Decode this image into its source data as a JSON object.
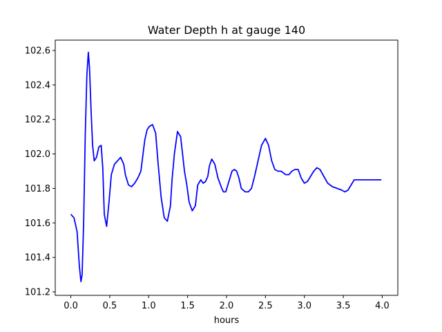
{
  "chart_data": {
    "type": "line",
    "title": "Water Depth h at gauge 140",
    "xlabel": "hours",
    "ylabel": "",
    "xlim": [
      -0.2,
      4.2
    ],
    "ylim": [
      101.18,
      102.66
    ],
    "x_ticks": [
      0.0,
      0.5,
      1.0,
      1.5,
      2.0,
      2.5,
      3.0,
      3.5,
      4.0
    ],
    "x_tick_labels": [
      "0.0",
      "0.5",
      "1.0",
      "1.5",
      "2.0",
      "2.5",
      "3.0",
      "3.5",
      "4.0"
    ],
    "y_ticks": [
      101.2,
      101.4,
      101.6,
      101.8,
      102.0,
      102.2,
      102.4,
      102.6
    ],
    "y_tick_labels": [
      "101.2",
      "101.4",
      "101.6",
      "101.8",
      "102.0",
      "102.2",
      "102.4",
      "102.6"
    ],
    "grid": false,
    "series": [
      {
        "color": "#0000ff",
        "x": [
          0.0,
          0.04,
          0.08,
          0.11,
          0.13,
          0.145,
          0.165,
          0.185,
          0.205,
          0.225,
          0.24,
          0.26,
          0.28,
          0.3,
          0.33,
          0.36,
          0.39,
          0.41,
          0.43,
          0.46,
          0.49,
          0.52,
          0.56,
          0.6,
          0.64,
          0.68,
          0.7,
          0.74,
          0.78,
          0.82,
          0.86,
          0.9,
          0.95,
          0.98,
          1.01,
          1.05,
          1.09,
          1.12,
          1.16,
          1.2,
          1.24,
          1.28,
          1.3,
          1.33,
          1.37,
          1.41,
          1.44,
          1.46,
          1.49,
          1.52,
          1.56,
          1.6,
          1.63,
          1.67,
          1.7,
          1.73,
          1.76,
          1.78,
          1.81,
          1.85,
          1.89,
          1.94,
          1.96,
          1.99,
          2.03,
          2.07,
          2.1,
          2.13,
          2.16,
          2.19,
          2.24,
          2.28,
          2.32,
          2.36,
          2.4,
          2.45,
          2.5,
          2.54,
          2.58,
          2.62,
          2.66,
          2.7,
          2.73,
          2.76,
          2.8,
          2.84,
          2.88,
          2.92,
          2.96,
          3.0,
          3.04,
          3.08,
          3.12,
          3.16,
          3.2,
          3.25,
          3.3,
          3.36,
          3.42,
          3.48,
          3.52,
          3.56,
          3.6,
          3.64,
          3.7,
          3.76,
          3.82,
          3.87,
          3.91,
          3.95,
          3.99
        ],
        "y": [
          101.65,
          101.63,
          101.55,
          101.35,
          101.26,
          101.3,
          101.6,
          102.1,
          102.45,
          102.59,
          102.5,
          102.25,
          102.05,
          101.96,
          101.98,
          102.04,
          102.05,
          101.92,
          101.65,
          101.58,
          101.72,
          101.88,
          101.94,
          101.96,
          101.98,
          101.94,
          101.88,
          101.82,
          101.81,
          101.83,
          101.86,
          101.9,
          102.08,
          102.14,
          102.16,
          102.17,
          102.12,
          101.95,
          101.75,
          101.63,
          101.61,
          101.7,
          101.85,
          102.0,
          102.13,
          102.1,
          101.98,
          101.9,
          101.82,
          101.72,
          101.67,
          101.7,
          101.82,
          101.85,
          101.83,
          101.84,
          101.87,
          101.93,
          101.97,
          101.94,
          101.86,
          101.8,
          101.78,
          101.78,
          101.84,
          101.9,
          101.91,
          101.9,
          101.86,
          101.8,
          101.78,
          101.78,
          101.8,
          101.87,
          101.95,
          102.05,
          102.09,
          102.05,
          101.96,
          101.91,
          101.9,
          101.9,
          101.89,
          101.88,
          101.88,
          101.9,
          101.91,
          101.91,
          101.86,
          101.83,
          101.84,
          101.87,
          101.9,
          101.92,
          101.91,
          101.87,
          101.83,
          101.81,
          101.8,
          101.79,
          101.78,
          101.79,
          101.82,
          101.85,
          101.85,
          101.85,
          101.85,
          101.85,
          101.85,
          101.85,
          101.85
        ]
      }
    ]
  }
}
